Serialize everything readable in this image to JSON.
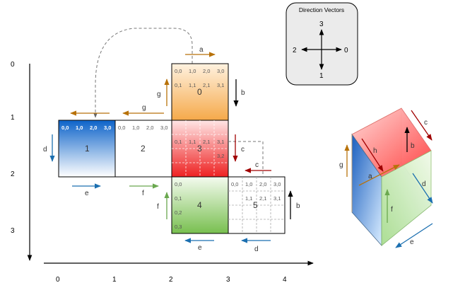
{
  "axes": {
    "y_labels": [
      "0",
      "1",
      "2",
      "3"
    ],
    "x_labels": [
      "0",
      "1",
      "2",
      "3",
      "4"
    ]
  },
  "faces": {
    "f0": "0",
    "f1": "1",
    "f2": "2",
    "f3": "3",
    "f4": "4",
    "f5": "5"
  },
  "coords": {
    "f0": [
      "0,0",
      "1,0",
      "2,0",
      "3,0",
      "0,1",
      "1,1",
      "2,1",
      "3,1"
    ],
    "f1": [
      "0,0",
      "1,0",
      "2,0",
      "3,0"
    ],
    "f2": [
      "0,0",
      "1,0",
      "2,0",
      "3,0"
    ],
    "f3": [
      "0,1",
      "1,1",
      "2,1",
      "3,1",
      "3,2"
    ],
    "f4": [
      "0,0",
      "0,1",
      "0,2",
      "0,3"
    ],
    "f5": [
      "0,0",
      "1,0",
      "2,0",
      "3,0",
      "1,1",
      "2,1",
      "3,1"
    ]
  },
  "edges": {
    "a_top": "a",
    "a_cube": "a",
    "b_f0": "b",
    "b_f5": "b",
    "b_cube": "b",
    "c_f3": "c",
    "c_f5": "c",
    "c_cube": "c",
    "d_f1": "d",
    "d_f5": "d",
    "d_cube": "d",
    "e_f1": "e",
    "e_f4": "e",
    "e_cube": "e",
    "f_f2": "f",
    "f_f4": "f",
    "f_cube": "f",
    "g_f0": "g",
    "g_f2": "g",
    "g_cube": "g",
    "h_cube": "h"
  },
  "direction_vectors": {
    "title": "Direction Vectors",
    "up": "3",
    "left": "2",
    "right": "0",
    "down": "1"
  },
  "colors": {
    "orange": "#b8720a",
    "black": "#000000",
    "darkred": "#a00000",
    "blue": "#1b6fb0",
    "green": "#6aa84f"
  }
}
